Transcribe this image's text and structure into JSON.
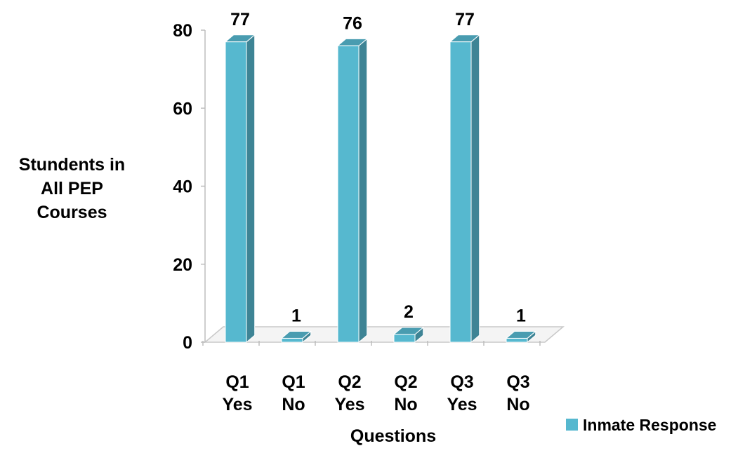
{
  "chart_data": {
    "type": "bar",
    "style": "3d-column",
    "categories": [
      [
        "Q1",
        "Yes"
      ],
      [
        "Q1",
        "No"
      ],
      [
        "Q2",
        "Yes"
      ],
      [
        "Q2",
        "No"
      ],
      [
        "Q3",
        "Yes"
      ],
      [
        "Q3",
        "No"
      ]
    ],
    "series": [
      {
        "name": "Inmate Response",
        "values": [
          77,
          1,
          76,
          2,
          77,
          1
        ],
        "color": "#56B8CF"
      }
    ],
    "data_labels": [
      "77",
      "1",
      "76",
      "2",
      "77",
      "1"
    ],
    "title": "",
    "xlabel": "Questions",
    "ylabel": "Stundents in\nAll PEP\nCourses",
    "ylim": [
      0,
      80
    ],
    "yticks": [
      0,
      20,
      40,
      60,
      80
    ],
    "grid": false,
    "legend": "bottom-right"
  }
}
